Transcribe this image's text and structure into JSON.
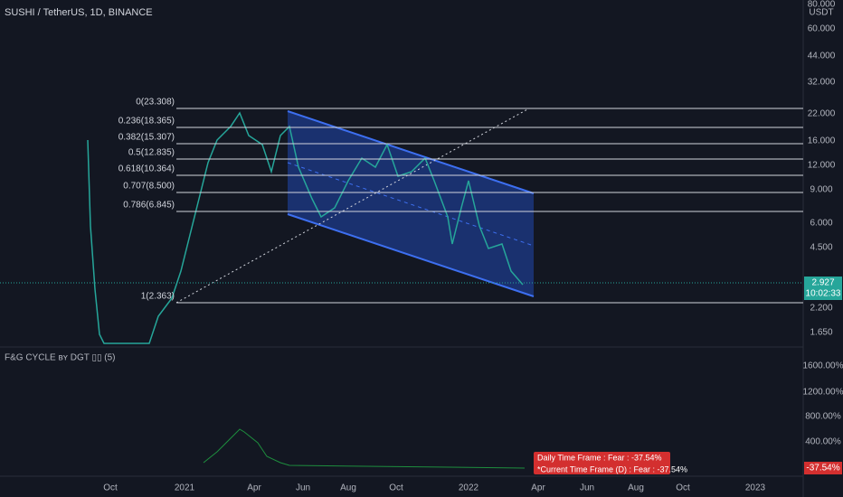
{
  "header": {
    "title": "SUSHI / TetherUS, 1D, BINANCE"
  },
  "price_axis": {
    "unit": "USDT",
    "labels": [
      "80.000",
      "60.000",
      "44.000",
      "32.000",
      "22.000",
      "16.000",
      "12.000",
      "9.000",
      "6.000",
      "4.500",
      "2.200",
      "1.650"
    ],
    "current_price": "2.927",
    "countdown": "10:02:33"
  },
  "fib_levels": [
    "0(23.308)",
    "0.236(18.365)",
    "0.382(15.307)",
    "0.5(12.835)",
    "0.618(10.364)",
    "0.707(8.500)",
    "0.786(6.845)",
    "1(2.363)"
  ],
  "indicator": {
    "title": "F&G CYCLE ʙʏ DGT ▯▯ (5)",
    "axis_labels": [
      "1600.00%",
      "1200.00%",
      "800.00%",
      "400.00%"
    ],
    "current": "-37.54%",
    "tooltip": [
      "Daily Time Frame : Fear : -37.54%",
      "*Current Time Frame (D) : Fear : -37.54%"
    ]
  },
  "time_axis": {
    "labels": [
      "Oct",
      "2021",
      "Apr",
      "Jun",
      "Aug",
      "Oct",
      "2022",
      "Apr",
      "Jun",
      "Aug",
      "Oct",
      "2023"
    ]
  }
}
